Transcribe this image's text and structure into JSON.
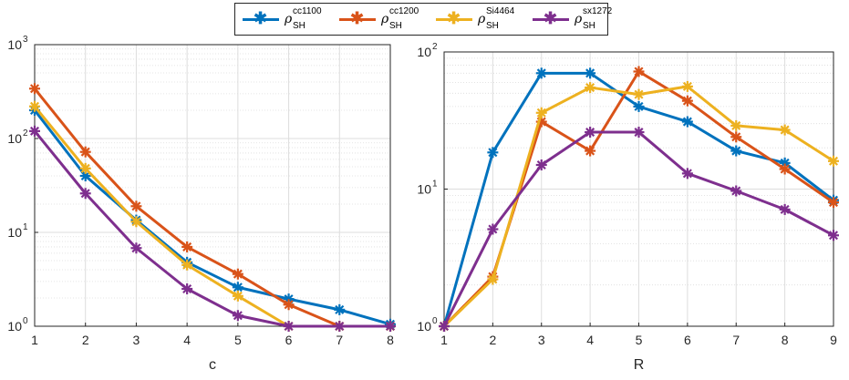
{
  "legend": [
    {
      "symbol": "ρ",
      "sup": "cc1100",
      "sub": "SH",
      "color": "#0072BD"
    },
    {
      "symbol": "ρ",
      "sup": "cc1200",
      "sub": "SH",
      "color": "#D95319"
    },
    {
      "symbol": "ρ",
      "sup": "Si4464",
      "sub": "SH",
      "color": "#EDB120"
    },
    {
      "symbol": "ρ",
      "sup": "sx1272",
      "sub": "SH",
      "color": "#7E2F8E"
    }
  ],
  "chart_data": [
    {
      "type": "line",
      "xlabel": "c",
      "ylabel": "",
      "yscale": "log",
      "xlim": [
        1,
        8
      ],
      "ylim": [
        1,
        1000
      ],
      "x": [
        1,
        2,
        3,
        4,
        5,
        6,
        7,
        8
      ],
      "xticks": [
        "1",
        "2",
        "3",
        "4",
        "5",
        "6",
        "7",
        "8"
      ],
      "grid": true,
      "series": [
        {
          "name": "cc1100",
          "color": "#0072BD",
          "values": [
            200,
            40,
            13.5,
            4.8,
            2.6,
            1.95,
            1.5,
            1.05
          ]
        },
        {
          "name": "cc1200",
          "color": "#D95319",
          "values": [
            340,
            72,
            19,
            7,
            3.6,
            1.7,
            1.0,
            1.0
          ]
        },
        {
          "name": "Si4464",
          "color": "#EDB120",
          "values": [
            220,
            48,
            13,
            4.5,
            2.1,
            1.0,
            1.0,
            1.0
          ]
        },
        {
          "name": "sx1272",
          "color": "#7E2F8E",
          "values": [
            120,
            26,
            6.8,
            2.5,
            1.3,
            1.0,
            1.0,
            1.0
          ]
        }
      ]
    },
    {
      "type": "line",
      "xlabel": "R",
      "ylabel": "",
      "yscale": "log",
      "xlim": [
        1,
        9
      ],
      "ylim": [
        1,
        100
      ],
      "x": [
        1,
        2,
        3,
        4,
        5,
        6,
        7,
        8,
        9
      ],
      "xticks": [
        "1",
        "2",
        "3",
        "4",
        "5",
        "6",
        "7",
        "8",
        "9"
      ],
      "grid": true,
      "series": [
        {
          "name": "cc1100",
          "color": "#0072BD",
          "values": [
            1.0,
            18.5,
            70,
            70,
            40,
            31,
            19,
            15.5,
            8.3
          ]
        },
        {
          "name": "cc1200",
          "color": "#D95319",
          "values": [
            1.0,
            2.3,
            31,
            19,
            72,
            44,
            24,
            14,
            8.0
          ]
        },
        {
          "name": "Si4464",
          "color": "#EDB120",
          "values": [
            1.0,
            2.2,
            36,
            55,
            49,
            56,
            29,
            27,
            16
          ]
        },
        {
          "name": "sx1272",
          "color": "#7E2F8E",
          "values": [
            1.0,
            5.1,
            15,
            26,
            26,
            13,
            9.7,
            7.1,
            4.6
          ]
        }
      ]
    }
  ]
}
